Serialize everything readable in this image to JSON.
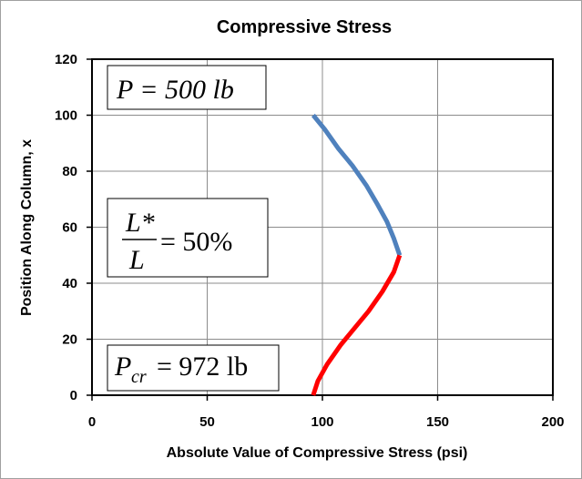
{
  "chart_data": {
    "type": "line",
    "title": "Compressive Stress",
    "xlabel": "Absolute Value of Compressive Stress (psi)",
    "ylabel": "Position Along Column, x",
    "xlim": [
      0,
      200
    ],
    "ylim": [
      0,
      120
    ],
    "xticks": [
      "0",
      "50",
      "100",
      "150",
      "200"
    ],
    "yticks": [
      "0",
      "20",
      "40",
      "60",
      "80",
      "100",
      "120"
    ],
    "grid": true,
    "series": [
      {
        "color": "#4f81bd",
        "x": [
          96,
          101,
          107,
          113,
          119,
          124,
          128,
          131,
          133.5
        ],
        "y": [
          100,
          95,
          88,
          82,
          75,
          68,
          62,
          56,
          50
        ]
      },
      {
        "color": "#ff0000",
        "x": [
          133.5,
          131,
          126,
          120,
          114,
          108,
          102,
          98,
          96
        ],
        "y": [
          50,
          44,
          37,
          30,
          24,
          18,
          11,
          5,
          0
        ]
      }
    ],
    "annotations": [
      {
        "main": "P = 500 lb"
      },
      {
        "num": "L*",
        "den": "L",
        "rhs": "= 50%"
      },
      {
        "main": "P",
        "sub": "cr",
        "rhs": "= 972 lb"
      }
    ]
  }
}
